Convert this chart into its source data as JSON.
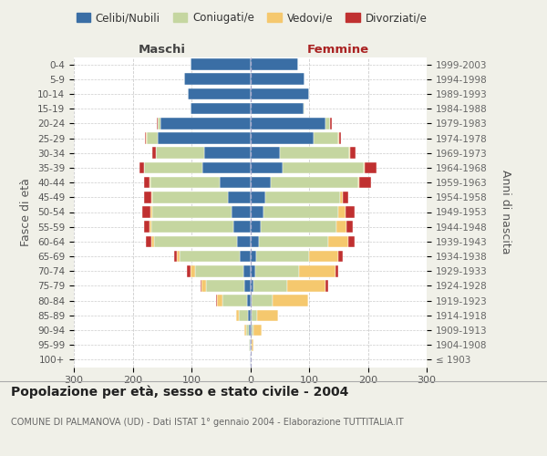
{
  "age_groups": [
    "100+",
    "95-99",
    "90-94",
    "85-89",
    "80-84",
    "75-79",
    "70-74",
    "65-69",
    "60-64",
    "55-59",
    "50-54",
    "45-49",
    "40-44",
    "35-39",
    "30-34",
    "25-29",
    "20-24",
    "15-19",
    "10-14",
    "5-9",
    "0-4"
  ],
  "birth_years": [
    "≤ 1903",
    "1904-1908",
    "1909-1913",
    "1914-1918",
    "1919-1923",
    "1924-1928",
    "1929-1933",
    "1934-1938",
    "1939-1943",
    "1944-1948",
    "1949-1953",
    "1954-1958",
    "1959-1963",
    "1964-1968",
    "1969-1973",
    "1974-1978",
    "1979-1983",
    "1984-1988",
    "1989-1993",
    "1994-1998",
    "1999-2003"
  ],
  "male_celibe": [
    1,
    1,
    2,
    4,
    5,
    10,
    12,
    18,
    22,
    28,
    32,
    38,
    52,
    82,
    78,
    158,
    153,
    102,
    106,
    112,
    102
  ],
  "male_coniugato": [
    0,
    1,
    5,
    15,
    42,
    65,
    82,
    102,
    142,
    140,
    135,
    128,
    118,
    98,
    82,
    18,
    5,
    0,
    0,
    0,
    0
  ],
  "male_vedovo": [
    0,
    1,
    3,
    5,
    10,
    8,
    8,
    5,
    4,
    3,
    2,
    2,
    1,
    1,
    1,
    1,
    0,
    0,
    0,
    0,
    0
  ],
  "male_divorziato": [
    0,
    0,
    0,
    0,
    1,
    2,
    5,
    5,
    10,
    10,
    15,
    12,
    10,
    8,
    5,
    2,
    1,
    0,
    0,
    0,
    0
  ],
  "female_nubile": [
    1,
    1,
    2,
    2,
    3,
    5,
    8,
    10,
    15,
    18,
    22,
    25,
    35,
    55,
    50,
    108,
    128,
    90,
    100,
    93,
    82
  ],
  "female_coniugata": [
    0,
    1,
    3,
    10,
    35,
    58,
    75,
    90,
    118,
    128,
    128,
    128,
    148,
    138,
    118,
    42,
    8,
    2,
    0,
    0,
    0
  ],
  "female_vedova": [
    0,
    3,
    15,
    35,
    60,
    65,
    62,
    50,
    34,
    18,
    12,
    5,
    3,
    2,
    1,
    1,
    0,
    0,
    0,
    0,
    0
  ],
  "female_divorziata": [
    0,
    0,
    0,
    0,
    1,
    5,
    5,
    8,
    10,
    10,
    15,
    8,
    20,
    20,
    10,
    3,
    2,
    0,
    0,
    0,
    0
  ],
  "color_celibe": "#3a6ea5",
  "color_coniugato": "#c5d6a0",
  "color_vedovo": "#f5c86e",
  "color_divorziato": "#c03030",
  "xlim": 300,
  "title": "Popolazione per età, sesso e stato civile - 2004",
  "subtitle": "COMUNE DI PALMANOVA (UD) - Dati ISTAT 1° gennaio 2004 - Elaborazione TUTTITALIA.IT",
  "ylabel_left": "Fasce di età",
  "ylabel_right": "Anni di nascita",
  "label_maschi": "Maschi",
  "label_femmine": "Femmine",
  "legend_labels": [
    "Celibi/Nubili",
    "Coniugati/e",
    "Vedovi/e",
    "Divorziati/e"
  ],
  "bg_color": "#f0f0e8",
  "plot_bg": "#ffffff"
}
